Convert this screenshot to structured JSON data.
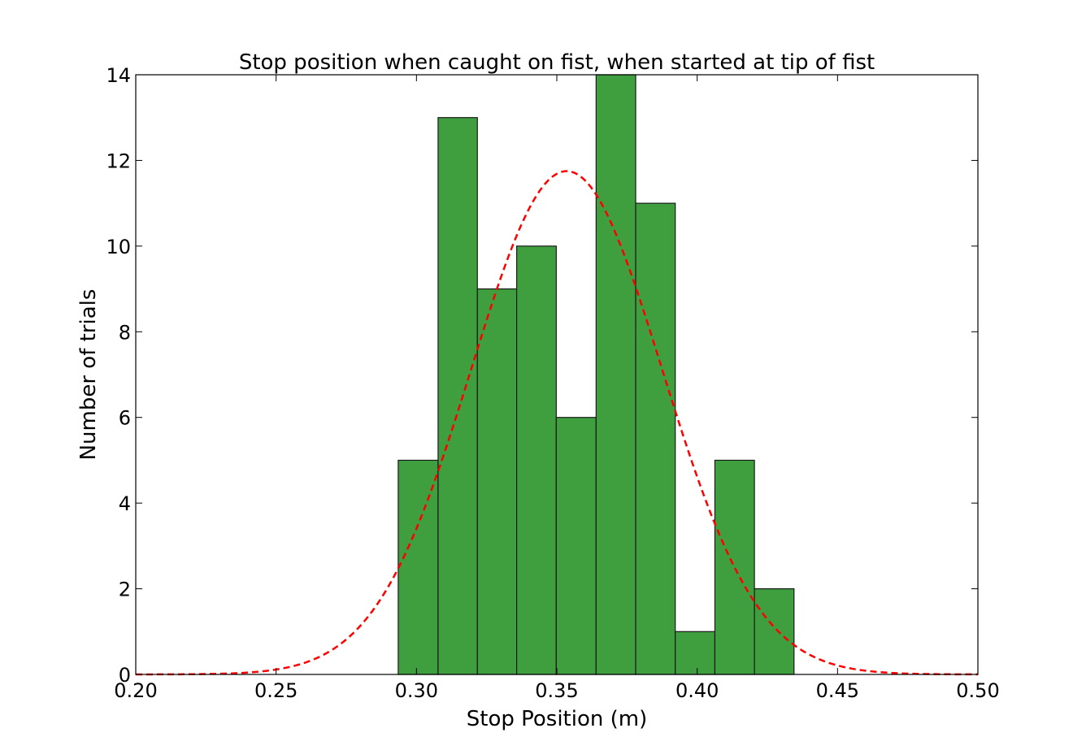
{
  "chart_data": {
    "type": "bar",
    "subtype": "histogram",
    "title": "Stop position when caught on fist, when started at tip of fist",
    "xlabel": "Stop Position (m)",
    "ylabel": "Number of trials",
    "xlim": [
      0.2,
      0.5
    ],
    "ylim": [
      0,
      14
    ],
    "x_ticks": [
      "0.20",
      "0.25",
      "0.30",
      "0.35",
      "0.40",
      "0.45",
      "0.50"
    ],
    "y_ticks": [
      "0",
      "2",
      "4",
      "6",
      "8",
      "10",
      "12",
      "14"
    ],
    "grid": false,
    "bar_color": "#3f9f3f",
    "bar_edge_color": "#1a1a1a",
    "bins": [
      {
        "x0": 0.2935,
        "x1": 0.3077,
        "count": 5
      },
      {
        "x0": 0.3077,
        "x1": 0.3217,
        "count": 13
      },
      {
        "x0": 0.3217,
        "x1": 0.3357,
        "count": 9
      },
      {
        "x0": 0.3357,
        "x1": 0.3498,
        "count": 10
      },
      {
        "x0": 0.3498,
        "x1": 0.364,
        "count": 6
      },
      {
        "x0": 0.364,
        "x1": 0.3781,
        "count": 14
      },
      {
        "x0": 0.3781,
        "x1": 0.3922,
        "count": 11
      },
      {
        "x0": 0.3922,
        "x1": 0.4063,
        "count": 1
      },
      {
        "x0": 0.4063,
        "x1": 0.4204,
        "count": 5
      },
      {
        "x0": 0.4204,
        "x1": 0.4345,
        "count": 2
      }
    ],
    "fit_curve": {
      "type": "normal",
      "style": "dashed",
      "color": "#ff0000",
      "mean": 0.3535,
      "sigma": 0.034,
      "peak": 11.75
    }
  }
}
